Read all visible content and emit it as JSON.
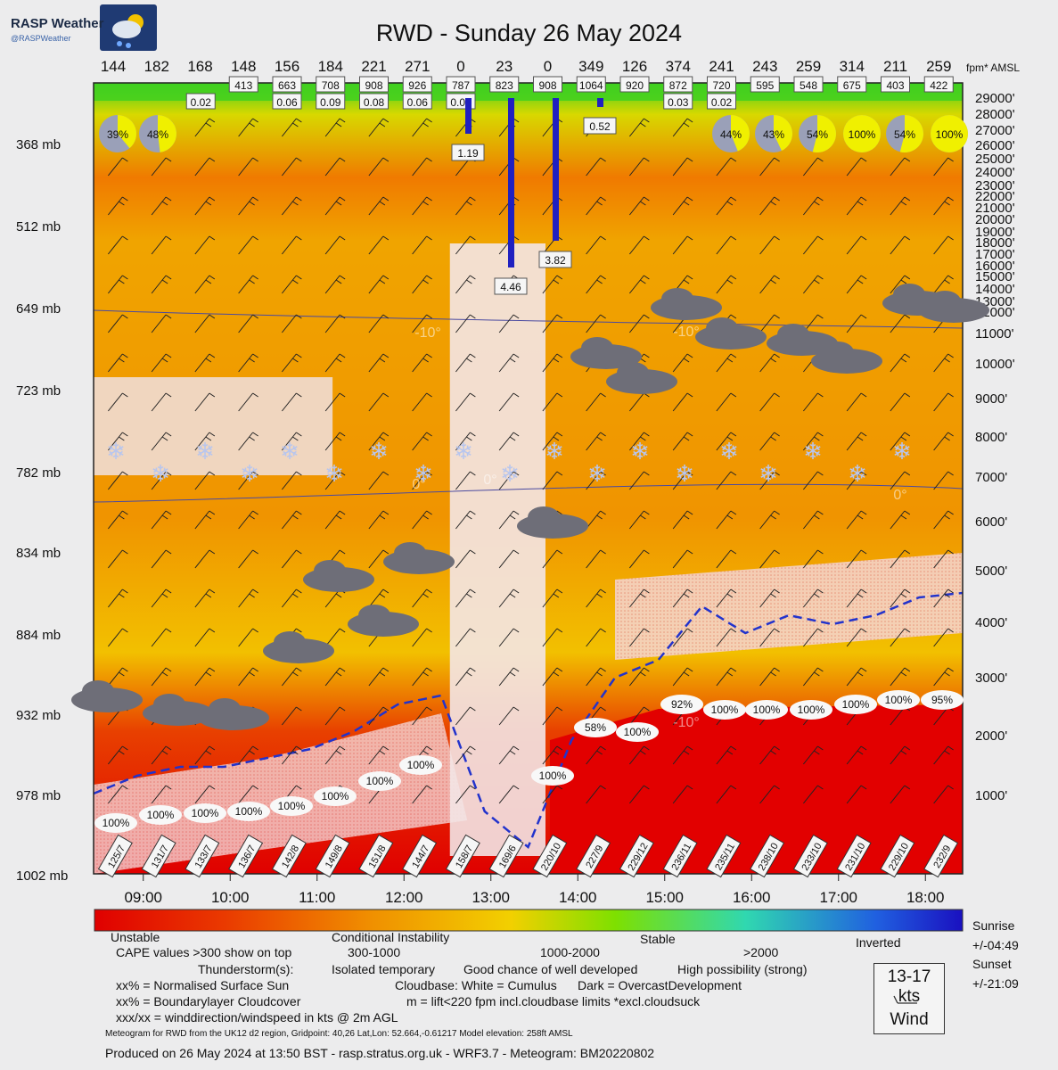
{
  "header": {
    "brand": "RASP Weather",
    "brand_handle": "@RASPWeather",
    "logo_icon": "cloud-sun-rain-icon",
    "title": "RWD - Sunday 26 May 2024"
  },
  "chart_data": {
    "type": "heatmap",
    "title": "RWD - Sunday 26 May 2024",
    "x_ticks": [
      "09:00",
      "10:00",
      "11:00",
      "12:00",
      "13:00",
      "14:00",
      "15:00",
      "16:00",
      "17:00",
      "18:00"
    ],
    "fpm_values": [
      "144",
      "182",
      "168",
      "148",
      "156",
      "184",
      "221",
      "271",
      "0",
      "23",
      "0",
      "349",
      "126",
      "374",
      "241",
      "243",
      "259",
      "314",
      "211",
      "259"
    ],
    "fpm_unit": "fpm* AMSL",
    "cloudbase_a": [
      "413",
      "663",
      "708",
      "908",
      "926",
      "787",
      "823",
      "908",
      "1064",
      "920",
      "872",
      "720",
      "595",
      "548",
      "675",
      "403",
      "422"
    ],
    "cloudbase_a_first": "",
    "cape_small": [
      "0.02",
      "0.06",
      "0.09",
      "0.08",
      "0.06",
      "0.07",
      "0.03",
      "0.02"
    ],
    "cape_bars": [
      {
        "label": "1.19"
      },
      {
        "label": "4.46"
      },
      {
        "label": "3.82"
      },
      {
        "label": "0.52"
      }
    ],
    "sun_pct": [
      "39%",
      "48%",
      "44%",
      "43%",
      "54%",
      "100%",
      "54%",
      "100%"
    ],
    "sun_fraction": [
      0.39,
      0.48,
      0.44,
      0.43,
      0.54,
      1.0,
      0.54,
      1.0
    ],
    "pressure_levels": [
      "368 mb",
      "512 mb",
      "649 mb",
      "723 mb",
      "782 mb",
      "834 mb",
      "884 mb",
      "932 mb",
      "978 mb",
      "1002 mb"
    ],
    "altitude_ft": [
      "29000'",
      "28000'",
      "27000'",
      "26000'",
      "25000'",
      "24000'",
      "23000'",
      "22000'",
      "21000'",
      "20000'",
      "19000'",
      "18000'",
      "17000'",
      "16000'",
      "15000'",
      "14000'",
      "13000'",
      "12000'",
      "11000'",
      "10000'",
      "9000'",
      "8000'",
      "7000'",
      "6000'",
      "5000'",
      "4000'",
      "3000'",
      "2000'",
      "1000'"
    ],
    "surface_wind": [
      "125/7",
      "131/7",
      "133/7",
      "136/7",
      "142/8",
      "149/8",
      "151/8",
      "144/7",
      "158/7",
      "169/6",
      "220/10",
      "227/9",
      "229/12",
      "236/11",
      "235/11",
      "238/10",
      "233/10",
      "231/10",
      "229/10",
      "232/9"
    ],
    "blcloud_pct": [
      "100%",
      "100%",
      "100%",
      "100%",
      "100%",
      "100%",
      "100%",
      "100%",
      "100%",
      "58%",
      "100%",
      "92%",
      "100%",
      "100%",
      "100%",
      "100%",
      "100%",
      "95%"
    ],
    "isotherm_labels": [
      "-10°",
      "-10°",
      "0°",
      "0°",
      "0°",
      "-10°"
    ],
    "colorscale": [
      "#e00000",
      "#ee5a00",
      "#f0a200",
      "#f2d000",
      "#c8e000",
      "#50e000",
      "#30d0b0",
      "#2060e0",
      "#1a10c0"
    ]
  },
  "legend": {
    "categories": [
      "Unstable",
      "Conditional Instability",
      "Stable",
      "Inverted"
    ],
    "cape_row_title": "CAPE values >300 show on top",
    "cape_row_values": [
      "300-1000",
      "1000-2000",
      ">2000"
    ],
    "ts_title": "Thunderstorm(s):",
    "ts_values": [
      "Isolated temporary",
      "Good chance of well developed",
      "High possibility (strong)"
    ],
    "sun_line": "xx% = Normalised Surface Sun",
    "cloudbase_line": "Cloudbase: White = Cumulus      Dark = OvercastDevelopment",
    "bl_line": "xx% = Boundarylayer Cloudcover",
    "lift_line": "m = lift<220 fpm incl.cloudbase limits *excl.cloudsuck",
    "wind_line": "xxx/xx = winddirection/windspeed in kts @ 2m AGL",
    "sunrise_label": "Sunrise",
    "sunrise_value": "+/-04:49",
    "sunset_label": "Sunset",
    "sunset_value": "+/-21:09",
    "wind_key_speed": "13-17 kts",
    "wind_key_label": "Wind",
    "meta_line": "Meteogram for RWD from the UK12 d2 region, Gridpoint: 40,26 Lat,Lon: 52.664,-0.61217 Model elevation: 258ft AMSL",
    "produced_line": "Produced on 26 May 2024 at 13:50 BST - rasp.stratus.org.uk - WRF3.7 - Meteogram: BM20220802"
  }
}
